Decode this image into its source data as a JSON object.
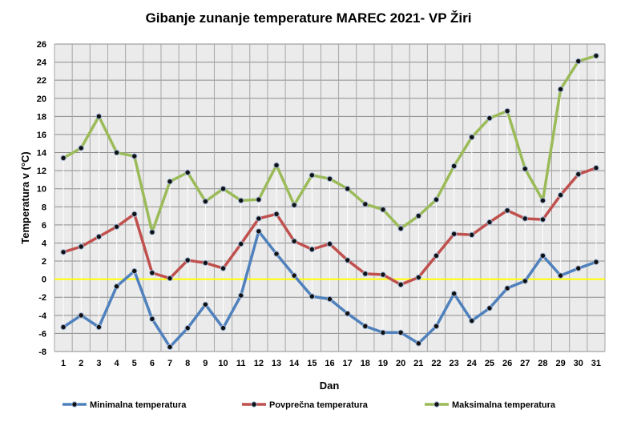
{
  "chart_data": {
    "type": "line",
    "title": "Gibanje zunanje temperature MAREC 2021- VP Žiri",
    "xlabel": "Dan",
    "ylabel": "Temperatura v (°C)",
    "ylim": [
      -8,
      26
    ],
    "yticks": [
      -8,
      -6,
      -4,
      -2,
      0,
      2,
      4,
      6,
      8,
      10,
      12,
      14,
      16,
      18,
      20,
      22,
      24,
      26
    ],
    "grid": true,
    "legend_position": "bottom",
    "reference_line": {
      "value": 0,
      "color": "#FFFF00"
    },
    "x": [
      1,
      2,
      3,
      4,
      5,
      6,
      7,
      8,
      9,
      10,
      11,
      12,
      13,
      14,
      15,
      16,
      17,
      18,
      19,
      20,
      21,
      22,
      23,
      24,
      25,
      26,
      27,
      28,
      29,
      30,
      31
    ],
    "series": [
      {
        "name": "Minimalna temperatura",
        "color": "#4F81BD",
        "values": [
          -5.3,
          -4,
          -5.3,
          -0.8,
          0.9,
          -4.4,
          -7.5,
          -5.4,
          -2.8,
          -5.4,
          -1.8,
          5.3,
          2.8,
          0.4,
          -1.9,
          -2.2,
          -3.8,
          -5.2,
          -5.9,
          -5.9,
          -7.1,
          -5.2,
          -1.6,
          -4.6,
          -3.2,
          -1,
          -0.2,
          2.6,
          0.4,
          1.2,
          1.9
        ]
      },
      {
        "name": "Povprečna temperatura",
        "color": "#C0504D",
        "values": [
          3,
          3.6,
          4.7,
          5.8,
          7.2,
          0.7,
          0.1,
          2.1,
          1.8,
          1.2,
          3.9,
          6.7,
          7.2,
          4.2,
          3.3,
          3.9,
          2.1,
          0.6,
          0.5,
          -0.6,
          0.2,
          2.6,
          5,
          4.9,
          6.3,
          7.6,
          6.7,
          6.6,
          9.3,
          11.6,
          12.3
        ]
      },
      {
        "name": "Maksimalna temperatura",
        "color": "#9BBB59",
        "values": [
          13.4,
          14.5,
          18,
          14,
          13.6,
          5.2,
          10.8,
          11.8,
          8.6,
          10,
          8.7,
          8.8,
          12.6,
          8.2,
          11.5,
          11.1,
          10,
          8.3,
          7.7,
          5.6,
          7,
          8.8,
          12.5,
          15.7,
          17.8,
          18.6,
          12.2,
          8.7,
          21,
          24.1,
          24.7
        ]
      }
    ]
  }
}
